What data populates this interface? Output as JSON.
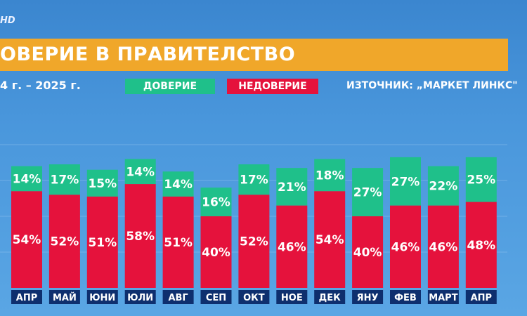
{
  "header": {
    "logo": "HD",
    "title": "ОВЕРИЕ В ПРАВИТЕЛСТВО",
    "subtitle": "4 г. – 2025 г.",
    "source": "ИЗТОЧНИК: „МАРКЕТ ЛИНКС\""
  },
  "colors": {
    "trust": "#1fc08a",
    "distrust": "#e5123c",
    "title_bar": "#f0a72a",
    "label_bg": "#0e2f6e"
  },
  "chart_data": {
    "type": "bar",
    "stacked": true,
    "categories": [
      "АПР",
      "МАЙ",
      "ЮНИ",
      "ЮЛИ",
      "АВГ",
      "СЕП",
      "ОКТ",
      "НОЕ",
      "ДЕК",
      "ЯНУ",
      "ФЕВ",
      "МАРТ",
      "АПР"
    ],
    "series": [
      {
        "name": "НЕДОВЕРИЕ",
        "values": [
          54,
          52,
          51,
          58,
          51,
          40,
          52,
          46,
          54,
          40,
          46,
          46,
          48
        ]
      },
      {
        "name": "ДОВЕРИЕ",
        "values": [
          14,
          17,
          15,
          14,
          14,
          16,
          17,
          21,
          18,
          27,
          27,
          22,
          25
        ]
      }
    ],
    "value_suffix": "%",
    "ylim": [
      0,
      80
    ],
    "grid": true,
    "legend": "top"
  }
}
